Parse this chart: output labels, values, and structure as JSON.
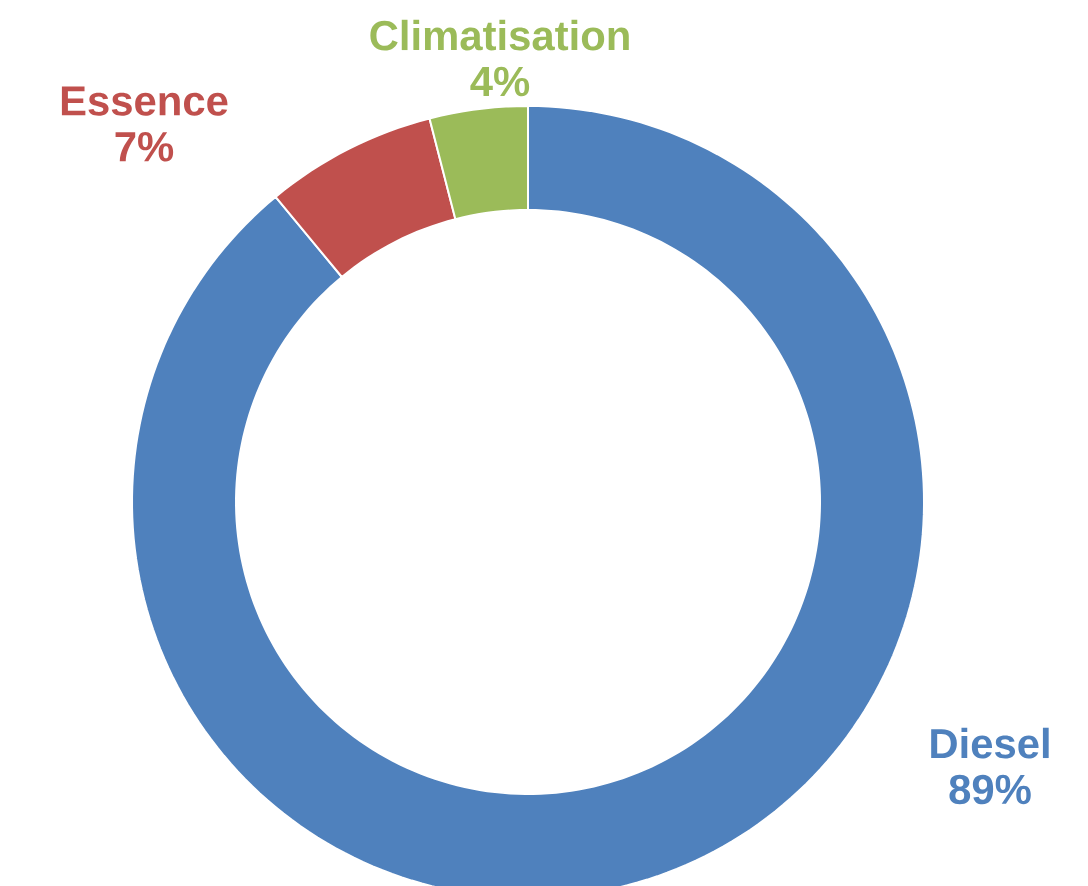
{
  "chart_data": {
    "type": "donut",
    "categories": [
      "Diesel",
      "Essence",
      "Climatisation"
    ],
    "values": [
      89,
      7,
      4
    ],
    "value_labels": [
      "89%",
      "7%",
      "4%"
    ],
    "colors": [
      "#4f81bd",
      "#c0504d",
      "#9bbb59"
    ]
  }
}
